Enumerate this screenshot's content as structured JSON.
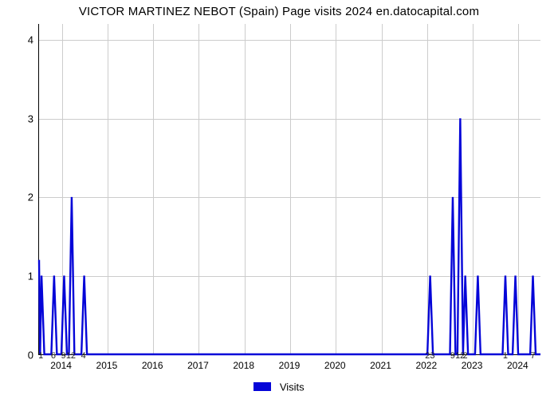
{
  "chart": {
    "type": "line-spike",
    "title": "VICTOR MARTINEZ NEBOT (Spain) Page visits 2024 en.datocapital.com",
    "title_fontsize": 15,
    "background_color": "#ffffff",
    "grid_color": "#cccccc",
    "axis_color": "#000000",
    "series_color": "#0505d8",
    "series_line_width": 2.4,
    "ylim": [
      0,
      4.2
    ],
    "yticks": [
      0,
      1,
      2,
      3,
      4
    ],
    "years": [
      "2014",
      "2015",
      "2016",
      "2017",
      "2018",
      "2019",
      "2020",
      "2021",
      "2022",
      "2023",
      "2024"
    ],
    "year_label_fontsize": 12,
    "point_label_fontsize": 11,
    "legend": {
      "label": "Visits",
      "swatch_color": "#0505d8"
    },
    "data": [
      {
        "x": 0.5,
        "y": 1,
        "label": "1"
      },
      {
        "x": 3.0,
        "y": 1,
        "label": "6"
      },
      {
        "x": 5.0,
        "y": 1,
        "label": "9"
      },
      {
        "x": 6.5,
        "y": 2,
        "label": "12"
      },
      {
        "x": 9.0,
        "y": 1,
        "label": "4"
      },
      {
        "x": 78.0,
        "y": 1,
        "label": "23"
      },
      {
        "x": 82.5,
        "y": 2,
        "label": "9"
      },
      {
        "x": 84.0,
        "y": 3,
        "label": "12"
      },
      {
        "x": 85.0,
        "y": 1,
        "label": "2"
      },
      {
        "x": 87.5,
        "y": 1,
        "label": ""
      },
      {
        "x": 93.0,
        "y": 1,
        "label": "1"
      },
      {
        "x": 95.0,
        "y": 1,
        "label": ""
      },
      {
        "x": 98.5,
        "y": 1,
        "label": "7"
      }
    ],
    "initial_drop_y": 1.2
  }
}
